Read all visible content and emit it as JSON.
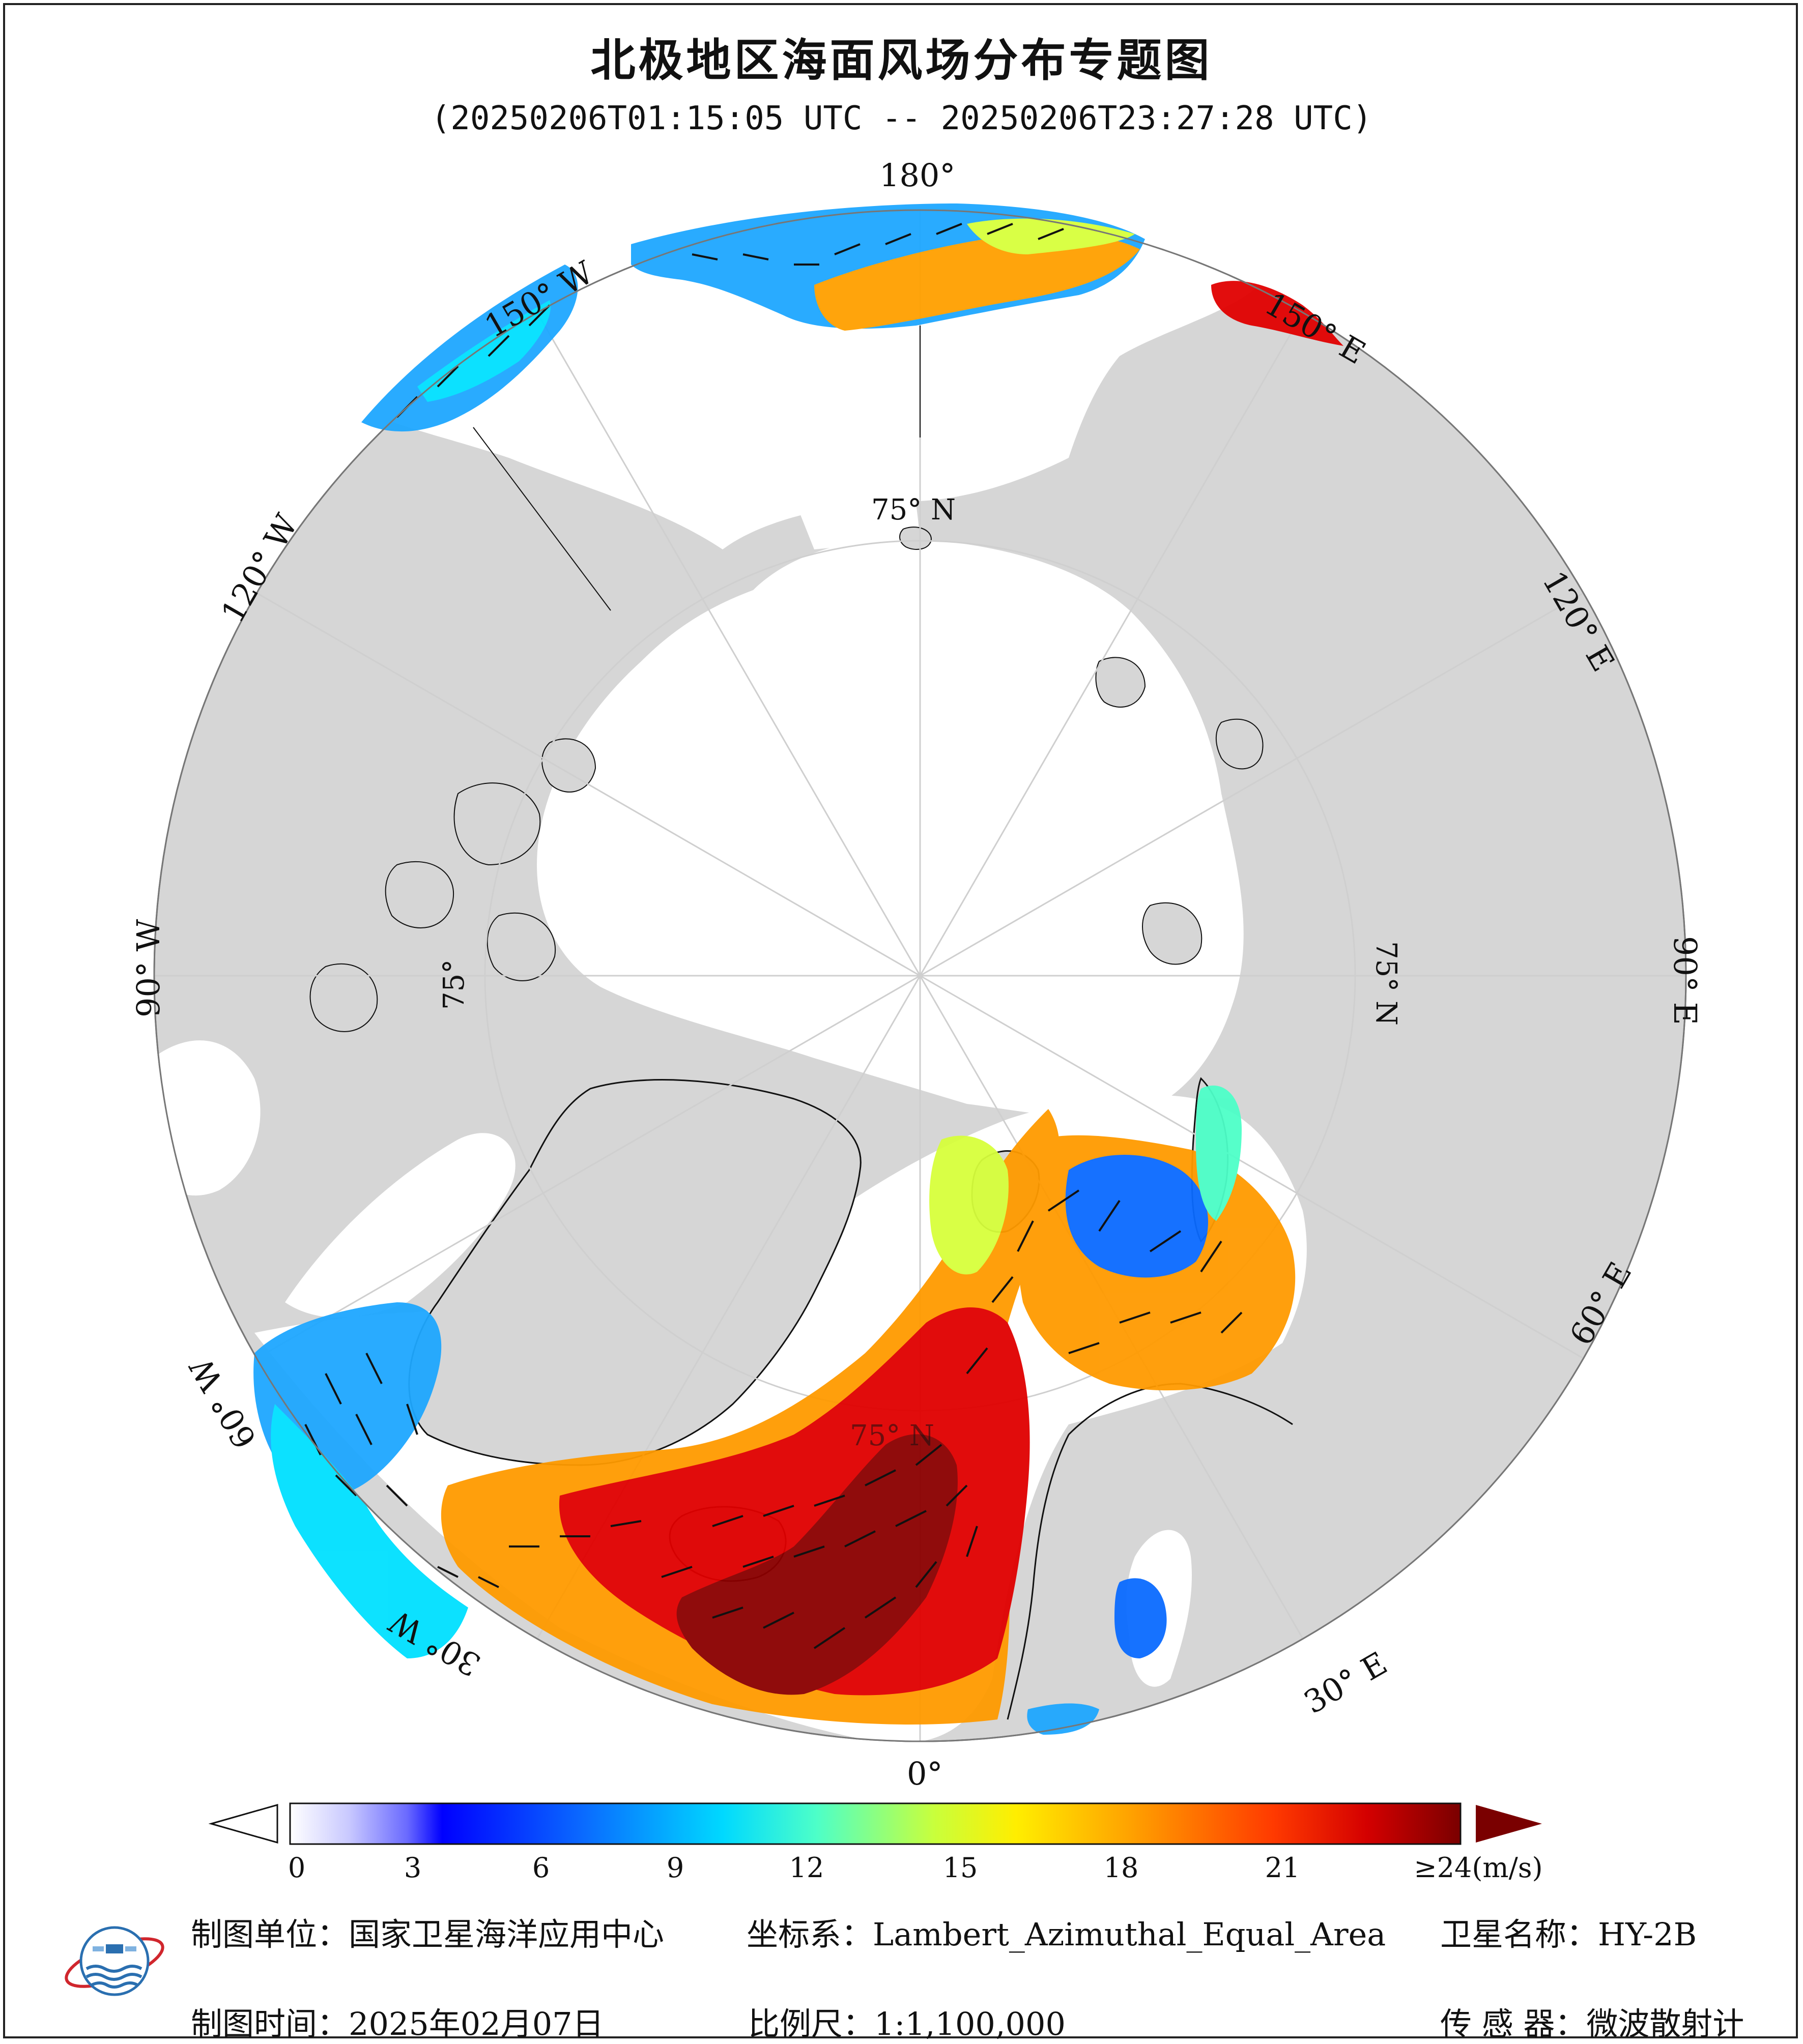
{
  "title": "北极地区海面风场分布专题图",
  "subtitle": "(20250206T01:15:05 UTC -- 20250206T23:27:28 UTC)",
  "map": {
    "projection": "polar stereographic (north pole centered)",
    "ocean_color": "#ffffff",
    "land_color": "#d6d6d6",
    "graticule_color": "#cfcfcf",
    "longitude_labels": {
      "lon_180": "180°",
      "lon_150e": "150° E",
      "lon_120e": "120° E",
      "lon_90e": "90° E",
      "lon_60e": "60° E",
      "lon_30e": "30° E",
      "lon_0": "0°",
      "lon_30w": "30° W",
      "lon_60w": "60° W",
      "lon_90w": "90° W",
      "lon_120w": "120° W",
      "lon_150w": "150° W"
    },
    "latitude_labels": {
      "lat_top": "75° N",
      "lat_right": "75° N",
      "lat_left": "75°",
      "lat_bottom": "75° N"
    }
  },
  "colorbar": {
    "unit_label": "≥24(m/s)",
    "ticks": [
      "0",
      "3",
      "6",
      "9",
      "12",
      "15",
      "18",
      "21"
    ],
    "tick_values": [
      0,
      3,
      6,
      9,
      12,
      15,
      18,
      21
    ],
    "min": 0,
    "max": 24,
    "colors": [
      "#ffffff",
      "#c9c9ff",
      "#7f7fff",
      "#0000ff",
      "#0a5fff",
      "#1ea7ff",
      "#00e0ff",
      "#66ffb0",
      "#d7ff3c",
      "#ffe600",
      "#ff9a00",
      "#ff4a00",
      "#e00000",
      "#8b0000"
    ]
  },
  "footer": {
    "unit_key": "制图单位：",
    "unit_value": "国家卫星海洋应用中心",
    "time_key": "制图时间：",
    "time_value": "2025年02月07日",
    "crs_key": "坐标系：",
    "crs_value": "Lambert_Azimuthal_Equal_Area",
    "scale_key": "比例尺：",
    "scale_value": "1:1,100,000",
    "satellite_key": "卫星名称：",
    "satellite_value": "HY-2B",
    "sensor_key": "传 感 器：",
    "sensor_value": "微波散射计"
  },
  "logo": {
    "name": "国家卫星海洋应用中心 emblem"
  }
}
